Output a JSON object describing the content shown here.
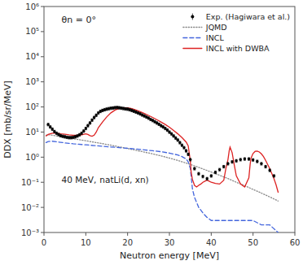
{
  "chart_data": {
    "type": "line",
    "xlabel": "Neutron energy [MeV]",
    "ylabel": "DDX [mb/sr/MeV]",
    "log": "y",
    "grid": false,
    "legend": "upper right",
    "xlim": [
      0,
      60
    ],
    "ylim": [
      0.001,
      1000000
    ],
    "xticks": [
      0,
      10,
      20,
      30,
      40,
      50,
      60
    ],
    "yticks": [
      {
        "value": 0.001,
        "label": "10⁻³"
      },
      {
        "value": 0.01,
        "label": "10⁻²"
      },
      {
        "value": 0.1,
        "label": "10⁻¹"
      },
      {
        "value": 1,
        "label": "10⁰"
      },
      {
        "value": 10,
        "label": "10¹"
      },
      {
        "value": 100,
        "label": "10²"
      },
      {
        "value": 1000,
        "label": "10³"
      },
      {
        "value": 10000,
        "label": "10⁴"
      },
      {
        "value": 100000,
        "label": "10⁵"
      },
      {
        "value": 1000000,
        "label": "10⁶"
      }
    ],
    "annotations": [
      "θn = 0°",
      "40 MeV,",
      "natLi(d, xn)"
    ],
    "series": [
      {
        "name": "Exp. (Hagiwara et al.)",
        "type": "scatter",
        "marker": "circle",
        "color": "#000000",
        "x": [
          1.0,
          1.5,
          2.0,
          2.5,
          3.0,
          3.5,
          4.0,
          4.5,
          5.0,
          5.5,
          6.0,
          6.5,
          7.0,
          7.5,
          8.0,
          8.5,
          9.0,
          9.5,
          10.0,
          10.5,
          11.0,
          11.5,
          12.0,
          12.5,
          13.0,
          13.5,
          14.0,
          14.5,
          15.0,
          15.5,
          16.0,
          16.5,
          17.0,
          17.5,
          18.0,
          18.5,
          19.0,
          19.5,
          20.0,
          20.5,
          21.0,
          21.5,
          22.0,
          22.5,
          23.0,
          23.5,
          24.0,
          24.5,
          25.0,
          25.5,
          26.0,
          26.5,
          27.0,
          27.5,
          28.0,
          28.5,
          29.0,
          29.5,
          30.0,
          30.5,
          31.0,
          31.5,
          32.0,
          32.5,
          33.0,
          33.5,
          34.0,
          34.5,
          35.0,
          36.0,
          37.0,
          38.0,
          39.0,
          40.0,
          41.0,
          42.0,
          43.0,
          44.0,
          45.0,
          46.0,
          47.0,
          48.0,
          49.0,
          50.0,
          51.0,
          52.0,
          53.0,
          54.0,
          55.0
        ],
        "values": [
          20.0,
          16.0,
          13.0,
          10.5,
          9.0,
          8.0,
          7.2,
          6.8,
          6.5,
          6.2,
          6.0,
          6.0,
          6.2,
          6.5,
          7.0,
          7.8,
          9.0,
          11.0,
          14.0,
          18.0,
          23.0,
          30.0,
          38.0,
          47.0,
          58.0,
          67.0,
          73.0,
          78.0,
          82.0,
          86.0,
          89.0,
          91.0,
          94.0,
          95.0,
          93.0,
          90.0,
          87.0,
          84.0,
          82.0,
          78.0,
          73.0,
          68.0,
          63.0,
          58.0,
          53.0,
          48.0,
          44.0,
          40.0,
          36.0,
          32.0,
          29.0,
          26.0,
          23.0,
          20.5,
          18.0,
          16.0,
          14.0,
          12.0,
          10.0,
          8.5,
          7.0,
          5.8,
          4.8,
          3.8,
          3.0,
          2.4,
          1.8,
          1.3,
          0.8,
          0.35,
          0.22,
          0.17,
          0.14,
          0.18,
          0.25,
          0.32,
          0.42,
          0.55,
          0.65,
          0.72,
          0.8,
          0.85,
          0.85,
          0.78,
          0.68,
          0.55,
          0.42,
          0.3,
          0.18
        ],
        "errors": [
          2.4,
          1.92,
          1.56,
          1.26,
          1.08,
          0.96,
          0.864,
          0.816,
          0.78,
          0.744,
          0.72,
          0.72,
          0.744,
          0.78,
          0.84,
          0.936,
          1.08,
          1.32,
          1.68,
          2.16,
          2.76,
          3.6,
          4.56,
          5.64,
          6.96,
          8.04,
          8.76,
          9.36,
          9.84,
          10.32,
          10.68,
          10.92,
          11.28,
          11.4,
          11.16,
          10.8,
          10.44,
          10.08,
          9.84,
          9.36,
          8.76,
          8.16,
          7.56,
          6.96,
          6.36,
          5.76,
          5.28,
          4.8,
          4.32,
          3.84,
          3.48,
          3.12,
          2.76,
          2.46,
          2.16,
          1.92,
          1.68,
          1.44,
          1.2,
          1.02,
          0.84,
          0.696,
          0.576,
          0.456,
          0.36,
          0.288,
          0.216,
          0.156,
          0.096,
          0.042,
          0.0264,
          0.0204,
          0.0168,
          0.0216,
          0.03,
          0.0384,
          0.0504,
          0.066,
          0.078,
          0.0864,
          0.096,
          0.102,
          0.102,
          0.0936,
          0.0816,
          0.066,
          0.0504,
          0.036,
          0.0216
        ]
      },
      {
        "name": "JQMD",
        "type": "line",
        "line_style": "dotted",
        "color": "#888888",
        "x": [
          0.5,
          1.0,
          2.0,
          3.0,
          4.0,
          5.0,
          6.0,
          7.0,
          8.0,
          9.0,
          10.0,
          11.0,
          12.0,
          13.0,
          14.0,
          15.0,
          16.0,
          17.0,
          18.0,
          19.0,
          20.0,
          22.0,
          24.0,
          26.0,
          28.0,
          30.0,
          32.0,
          34.0,
          36.0,
          38.0,
          40.0,
          42.0,
          44.0,
          46.0,
          48.0,
          50.0,
          52.0,
          54.0,
          56.0
        ],
        "values": [
          7.5,
          7.8,
          7.5,
          7.0,
          6.5,
          6.1,
          5.7,
          5.4,
          5.1,
          4.8,
          4.5,
          4.2,
          3.95,
          3.7,
          3.45,
          3.22,
          3.0,
          2.78,
          2.58,
          2.38,
          2.2,
          1.88,
          1.6,
          1.35,
          1.12,
          0.92,
          0.74,
          0.58,
          0.45,
          0.34,
          0.255,
          0.19,
          0.14,
          0.1,
          0.073,
          0.052,
          0.037,
          0.026,
          0.018
        ]
      },
      {
        "name": "INCL",
        "type": "line",
        "line_style": "dashed",
        "color": "#4466dd",
        "x": [
          0.5,
          1.0,
          2.0,
          3.0,
          4.0,
          5.0,
          6.0,
          7.0,
          8.0,
          9.0,
          10.0,
          12.0,
          14.0,
          16.0,
          18.0,
          20.0,
          22.0,
          24.0,
          26.0,
          28.0,
          30.0,
          32.0,
          33.0,
          34.0,
          34.5,
          35.0,
          35.3,
          35.5,
          36.0,
          37.0,
          38.0,
          39.0,
          40.0,
          42.0,
          44.0,
          46.0,
          48.0,
          50.0,
          52.0,
          54.0,
          56.0
        ],
        "values": [
          3.8,
          4.2,
          4.3,
          4.1,
          3.9,
          3.7,
          3.55,
          3.4,
          3.3,
          3.2,
          3.1,
          2.9,
          2.7,
          2.55,
          2.4,
          2.25,
          2.1,
          1.95,
          1.8,
          1.65,
          1.45,
          1.22,
          1.05,
          0.85,
          0.65,
          0.35,
          0.12,
          0.055,
          0.025,
          0.01,
          0.006,
          0.004,
          0.003,
          0.003,
          0.003,
          0.003,
          0.003,
          0.003,
          0.002,
          0.002,
          0.001
        ]
      },
      {
        "name": "INCL with DWBA",
        "type": "line",
        "line_style": "solid",
        "color": "#dd2222",
        "x": [
          0.5,
          1.0,
          2.0,
          3.0,
          4.0,
          5.0,
          6.0,
          7.0,
          8.0,
          9.0,
          10.0,
          10.5,
          11.0,
          11.5,
          12.0,
          12.5,
          13.0,
          14.0,
          15.0,
          16.0,
          17.0,
          18.0,
          19.0,
          20.0,
          21.0,
          22.0,
          23.0,
          24.0,
          25.0,
          26.0,
          27.0,
          28.0,
          29.0,
          30.0,
          31.0,
          32.0,
          33.0,
          34.0,
          34.5,
          35.0,
          35.2,
          35.5,
          36.0,
          36.5,
          37.0,
          37.5,
          38.0,
          38.5,
          39.0,
          39.5,
          40.0,
          40.5,
          41.0,
          42.0,
          43.0,
          43.5,
          44.0,
          44.3,
          44.5,
          45.0,
          45.5,
          46.0,
          47.0,
          48.0,
          49.0,
          49.3,
          49.5,
          50.0,
          50.5,
          51.0,
          51.5,
          52.0,
          52.5,
          53.0,
          54.0,
          55.0,
          55.5,
          56.0
        ],
        "values": [
          7.0,
          8.0,
          9.0,
          9.0,
          8.5,
          8.2,
          7.8,
          7.5,
          7.5,
          7.8,
          8.5,
          8.0,
          7.2,
          6.8,
          7.5,
          10.0,
          15.0,
          25.0,
          40.0,
          58.0,
          75.0,
          87.0,
          93.0,
          92.0,
          85.0,
          75.0,
          65.0,
          55.0,
          46.0,
          38.0,
          31.0,
          25.0,
          20.0,
          15.5,
          11.5,
          8.5,
          6.0,
          4.0,
          2.8,
          0.7,
          0.25,
          0.13,
          0.075,
          0.065,
          0.075,
          0.085,
          0.1,
          0.11,
          0.12,
          0.11,
          0.1,
          0.095,
          0.09,
          0.085,
          0.12,
          0.35,
          0.8,
          1.8,
          2.5,
          1.5,
          0.5,
          0.18,
          0.085,
          0.065,
          0.15,
          0.5,
          0.9,
          1.4,
          1.7,
          1.75,
          1.6,
          1.35,
          1.05,
          0.75,
          0.35,
          0.14,
          0.08,
          0.04
        ]
      }
    ]
  }
}
